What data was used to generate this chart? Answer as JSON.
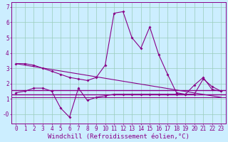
{
  "xlabel": "Windchill (Refroidissement éolien,°C)",
  "background_color": "#cceeff",
  "line_color": "#880088",
  "xlim": [
    -0.5,
    23.5
  ],
  "ylim": [
    -0.6,
    7.3
  ],
  "xticks": [
    0,
    1,
    2,
    3,
    4,
    5,
    6,
    7,
    8,
    9,
    10,
    11,
    12,
    13,
    14,
    15,
    16,
    17,
    18,
    19,
    20,
    21,
    22,
    23
  ],
  "yticks": [
    0,
    1,
    2,
    3,
    4,
    5,
    6,
    7
  ],
  "ytick_labels": [
    "-0",
    "1",
    "2",
    "3",
    "4",
    "5",
    "6",
    "7"
  ],
  "series1_x": [
    0,
    1,
    2,
    3,
    4,
    5,
    6,
    7,
    8,
    9,
    10,
    11,
    12,
    13,
    14,
    15,
    16,
    17,
    18,
    19,
    20,
    21,
    22,
    23
  ],
  "series1_y": [
    3.3,
    3.3,
    3.2,
    3.0,
    2.8,
    2.6,
    2.4,
    2.3,
    2.2,
    2.4,
    3.2,
    6.6,
    6.7,
    5.0,
    4.3,
    5.7,
    3.9,
    2.6,
    1.4,
    1.3,
    1.3,
    2.3,
    1.8,
    1.5
  ],
  "series2_x": [
    0,
    23
  ],
  "series2_y": [
    3.3,
    1.1
  ],
  "series3_x": [
    0,
    1,
    2,
    3,
    4,
    5,
    6,
    7,
    8,
    9,
    10,
    11,
    12,
    13,
    14,
    15,
    16,
    17,
    18,
    19,
    20,
    21,
    22,
    23
  ],
  "series3_y": [
    1.4,
    1.5,
    1.7,
    1.7,
    1.5,
    0.4,
    -0.2,
    1.7,
    0.9,
    1.1,
    1.2,
    1.3,
    1.3,
    1.3,
    1.3,
    1.3,
    1.3,
    1.3,
    1.3,
    1.3,
    1.9,
    2.4,
    1.6,
    1.5
  ],
  "hline1_y": 1.55,
  "hline2_y": 1.3,
  "hline3_y": 1.1,
  "font_color": "#880088",
  "grid_color": "#99ccbb",
  "tick_fontsize": 5.5,
  "xlabel_fontsize": 6.5
}
